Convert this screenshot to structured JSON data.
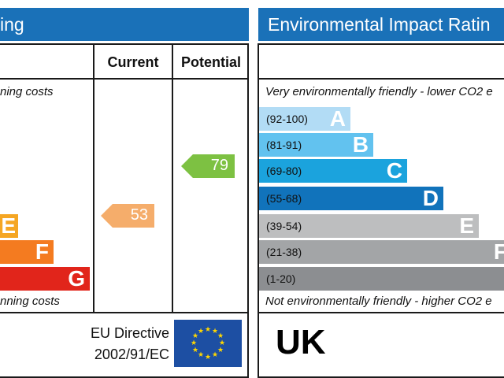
{
  "energy": {
    "header_partial": "ing",
    "col_current": "Current",
    "col_potential": "Potential",
    "top_note_partial": "ning costs",
    "bottom_note_partial": "nning costs",
    "bands": [
      {
        "letter": "E",
        "color": "#f5a623"
      },
      {
        "letter": "F",
        "color": "#f47b20"
      },
      {
        "letter": "G",
        "color": "#e1251b"
      }
    ],
    "current": {
      "value": "53",
      "color": "#f5ad6b"
    },
    "potential": {
      "value": "79",
      "color": "#7dc142"
    }
  },
  "footer_left": {
    "directive_line1": "EU Directive",
    "directive_line2": "2002/91/EC",
    "flag_colors": {
      "field": "#1d4fa3",
      "stars": "#ffd700"
    }
  },
  "environmental": {
    "header": "Environmental Impact Ratin",
    "top_note": "Very environmentally friendly - lower CO2 e",
    "bottom_note": "Not environmentally friendly - higher CO2 e",
    "bands": [
      {
        "range": "(92-100)",
        "letter": "A",
        "color": "#b2dcf5"
      },
      {
        "range": "(81-91)",
        "letter": "B",
        "color": "#62c2ef"
      },
      {
        "range": "(69-80)",
        "letter": "C",
        "color": "#1ba3dd"
      },
      {
        "range": "(55-68)",
        "letter": "D",
        "color": "#1173bb"
      },
      {
        "range": "(39-54)",
        "letter": "E",
        "color": "#bdbebf"
      },
      {
        "range": "(21-38)",
        "letter": "F",
        "color": "#a3a5a7"
      },
      {
        "range": "(1-20)",
        "letter": "",
        "color": "#8c8e91"
      }
    ]
  },
  "footer_right": {
    "country": "UK"
  }
}
